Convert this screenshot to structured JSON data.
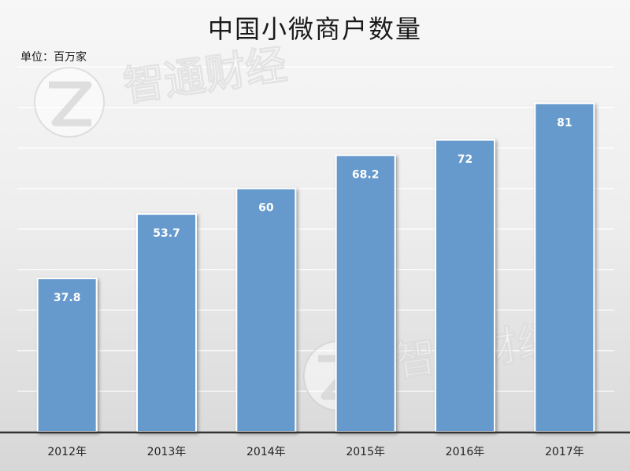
{
  "chart_data": {
    "type": "bar",
    "title": "中国小微商户数量",
    "unit_label": "单位：百万家",
    "categories": [
      "2012年",
      "2013年",
      "2014年",
      "2015年",
      "2016年",
      "2017年"
    ],
    "values": [
      37.8,
      53.7,
      60,
      68.2,
      72,
      81
    ],
    "value_labels": [
      "37.8",
      "53.7",
      "60",
      "68.2",
      "72",
      "81"
    ],
    "ylim": [
      0,
      90
    ],
    "grid": true,
    "legend": "none",
    "bar_color": "#6699cc",
    "label_color": "#ffffff"
  },
  "watermark": {
    "text": "智通财经",
    "color": "#c8c8c8"
  }
}
